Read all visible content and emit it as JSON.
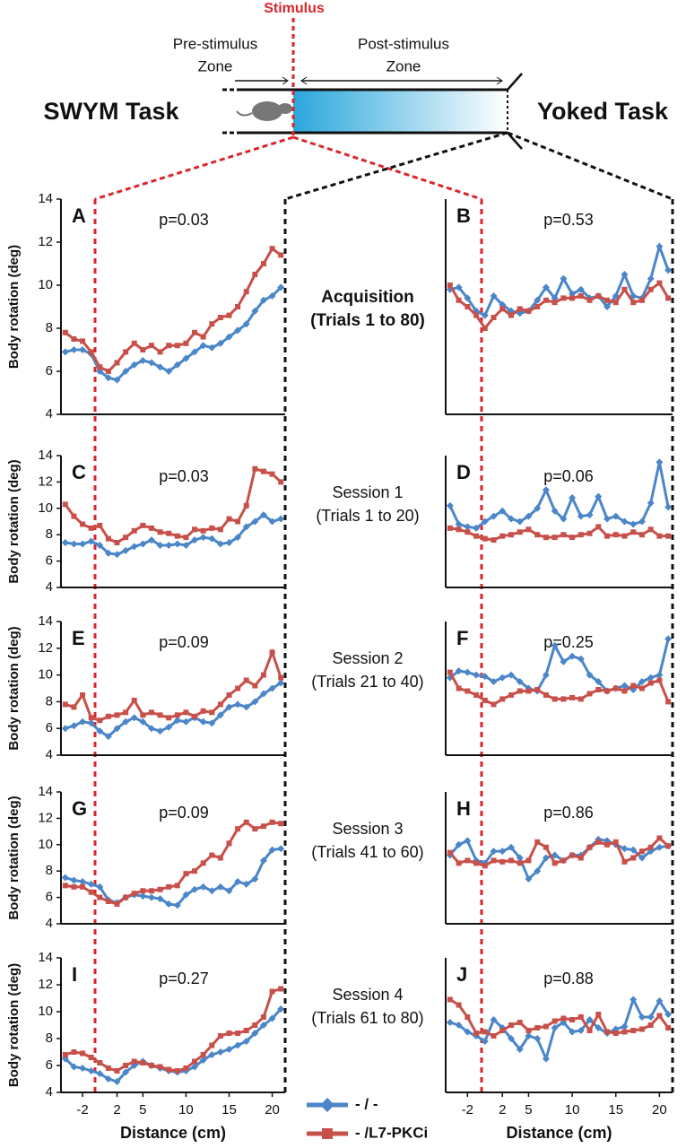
{
  "diagram": {
    "stimulus": "Stimulus",
    "pre_zone": [
      "Pre-stimulus",
      "Zone"
    ],
    "post_zone": [
      "Post-stimulus",
      "Zone"
    ],
    "left_task": "SWYM Task",
    "right_task": "Yoked Task"
  },
  "chart_data": [
    {
      "type": "line",
      "label": "A",
      "annotation": "p=0.03",
      "row_title": [
        "Acquisition",
        "(Trials 1 to 80)"
      ],
      "y_label": "Body rotation (deg)",
      "x": [
        -4,
        -3,
        -2,
        -1,
        0,
        1,
        2,
        3,
        4,
        5,
        6,
        7,
        8,
        9,
        10,
        11,
        12,
        13,
        14,
        15,
        16,
        17,
        18,
        19,
        20,
        21
      ],
      "xlim": [
        -4.5,
        21.5
      ],
      "ylim": [
        4,
        14
      ],
      "yticks": [
        4,
        6,
        8,
        10,
        12,
        14
      ],
      "series": [
        {
          "name": "- / -",
          "color": "#4a86c8",
          "marker": "diamond",
          "values": [
            6.9,
            7.0,
            7.0,
            6.8,
            6.0,
            5.7,
            5.6,
            6.0,
            6.3,
            6.5,
            6.4,
            6.2,
            6.0,
            6.3,
            6.6,
            6.9,
            7.2,
            7.1,
            7.3,
            7.6,
            7.9,
            8.2,
            8.8,
            9.3,
            9.5,
            9.9
          ]
        },
        {
          "name": "- /L7-PKCi",
          "color": "#c8504a",
          "marker": "square",
          "values": [
            7.8,
            7.5,
            7.4,
            6.9,
            6.2,
            6.0,
            6.4,
            6.9,
            7.3,
            7.0,
            7.2,
            6.9,
            7.2,
            7.2,
            7.3,
            7.8,
            7.6,
            8.2,
            8.5,
            8.6,
            9.0,
            9.7,
            10.5,
            11.0,
            11.7,
            11.4
          ]
        }
      ]
    },
    {
      "type": "line",
      "label": "B",
      "annotation": "p=0.53",
      "x": [
        -4,
        -3,
        -2,
        -1,
        0,
        1,
        2,
        3,
        4,
        5,
        6,
        7,
        8,
        9,
        10,
        11,
        12,
        13,
        14,
        15,
        16,
        17,
        18,
        19,
        20,
        21
      ],
      "xlim": [
        -4.5,
        21.5
      ],
      "ylim": [
        4,
        14
      ],
      "series": [
        {
          "name": "- / -",
          "color": "#4a86c8",
          "marker": "diamond",
          "values": [
            9.8,
            9.9,
            9.4,
            8.8,
            8.6,
            9.5,
            9.1,
            8.8,
            8.7,
            8.8,
            9.3,
            9.9,
            9.4,
            10.3,
            9.6,
            9.8,
            9.4,
            9.5,
            9.0,
            9.5,
            10.5,
            9.5,
            9.4,
            10.3,
            11.8,
            10.7
          ]
        },
        {
          "name": "- /L7-PKCi",
          "color": "#c8504a",
          "marker": "square",
          "values": [
            10.0,
            9.3,
            9.0,
            8.6,
            8.0,
            8.5,
            8.9,
            8.6,
            8.9,
            8.8,
            9.0,
            9.3,
            9.2,
            9.4,
            9.4,
            9.5,
            9.3,
            9.5,
            9.3,
            9.2,
            9.8,
            9.2,
            9.3,
            9.8,
            10.1,
            9.4
          ]
        }
      ]
    },
    {
      "type": "line",
      "label": "C",
      "annotation": "p=0.03",
      "row_title": [
        "Session 1",
        "(Trials 1 to 20)"
      ],
      "y_label": "Body rotation (deg)",
      "x": [
        -4,
        -3,
        -2,
        -1,
        0,
        1,
        2,
        3,
        4,
        5,
        6,
        7,
        8,
        9,
        10,
        11,
        12,
        13,
        14,
        15,
        16,
        17,
        18,
        19,
        20,
        21
      ],
      "xlim": [
        -4.5,
        21.5
      ],
      "ylim": [
        4,
        14
      ],
      "yticks": [
        4,
        6,
        8,
        10,
        12,
        14
      ],
      "series": [
        {
          "name": "- / -",
          "color": "#4a86c8",
          "marker": "diamond",
          "values": [
            7.4,
            7.3,
            7.3,
            7.5,
            7.2,
            6.6,
            6.5,
            6.8,
            7.1,
            7.3,
            7.6,
            7.2,
            7.2,
            7.3,
            7.2,
            7.6,
            7.8,
            7.7,
            7.3,
            7.4,
            7.8,
            8.6,
            9.0,
            9.5,
            9.0,
            9.2
          ]
        },
        {
          "name": "- /L7-PKCi",
          "color": "#c8504a",
          "marker": "square",
          "values": [
            10.3,
            9.4,
            8.8,
            8.5,
            8.7,
            7.7,
            7.4,
            7.8,
            8.3,
            8.7,
            8.5,
            8.2,
            8.1,
            7.9,
            7.8,
            8.4,
            8.3,
            8.5,
            8.4,
            9.2,
            9.0,
            10.2,
            13.0,
            12.8,
            12.6,
            12.0
          ]
        }
      ]
    },
    {
      "type": "line",
      "label": "D",
      "annotation": "p=0.06",
      "x": [
        -4,
        -3,
        -2,
        -1,
        0,
        1,
        2,
        3,
        4,
        5,
        6,
        7,
        8,
        9,
        10,
        11,
        12,
        13,
        14,
        15,
        16,
        17,
        18,
        19,
        20,
        21
      ],
      "xlim": [
        -4.5,
        21.5
      ],
      "ylim": [
        4,
        14
      ],
      "series": [
        {
          "name": "- / -",
          "color": "#4a86c8",
          "marker": "diamond",
          "values": [
            10.2,
            8.8,
            8.6,
            8.5,
            9.0,
            9.4,
            9.8,
            9.2,
            9.0,
            9.4,
            10.0,
            11.4,
            9.8,
            9.2,
            10.8,
            9.4,
            9.5,
            10.9,
            9.2,
            9.4,
            9.0,
            8.8,
            9.0,
            10.4,
            13.5,
            10.1
          ]
        },
        {
          "name": "- /L7-PKCi",
          "color": "#c8504a",
          "marker": "square",
          "values": [
            8.5,
            8.4,
            8.2,
            7.9,
            7.7,
            7.6,
            7.9,
            8.0,
            8.2,
            8.4,
            8.0,
            7.8,
            7.8,
            8.0,
            7.8,
            8.0,
            8.1,
            8.6,
            7.9,
            8.0,
            7.9,
            8.2,
            8.0,
            8.4,
            7.9,
            7.9
          ]
        }
      ]
    },
    {
      "type": "line",
      "label": "E",
      "annotation": "p=0.09",
      "row_title": [
        "Session 2",
        "(Trials 21 to 40)"
      ],
      "y_label": "Body rotation (deg)",
      "x": [
        -4,
        -3,
        -2,
        -1,
        0,
        1,
        2,
        3,
        4,
        5,
        6,
        7,
        8,
        9,
        10,
        11,
        12,
        13,
        14,
        15,
        16,
        17,
        18,
        19,
        20,
        21
      ],
      "xlim": [
        -4.5,
        21.5
      ],
      "ylim": [
        4,
        14
      ],
      "yticks": [
        4,
        6,
        8,
        10,
        12,
        14
      ],
      "series": [
        {
          "name": "- / -",
          "color": "#4a86c8",
          "marker": "diamond",
          "values": [
            6.0,
            6.2,
            6.5,
            6.4,
            5.8,
            5.4,
            6.0,
            6.5,
            6.8,
            6.5,
            6.0,
            5.8,
            6.1,
            6.6,
            6.5,
            6.8,
            6.5,
            6.4,
            7.0,
            7.6,
            7.8,
            7.6,
            8.0,
            8.6,
            9.0,
            9.4
          ]
        },
        {
          "name": "- /L7-PKCi",
          "color": "#c8504a",
          "marker": "square",
          "values": [
            7.8,
            7.6,
            8.5,
            6.8,
            6.6,
            6.9,
            7.0,
            7.2,
            8.1,
            7.0,
            7.2,
            7.0,
            6.8,
            7.0,
            7.2,
            6.9,
            7.3,
            7.2,
            7.8,
            8.5,
            9.0,
            9.6,
            9.2,
            10.0,
            11.7,
            9.8
          ]
        }
      ]
    },
    {
      "type": "line",
      "label": "F",
      "annotation": "p=0.25",
      "x": [
        -4,
        -3,
        -2,
        -1,
        0,
        1,
        2,
        3,
        4,
        5,
        6,
        7,
        8,
        9,
        10,
        11,
        12,
        13,
        14,
        15,
        16,
        17,
        18,
        19,
        20,
        21
      ],
      "xlim": [
        -4.5,
        21.5
      ],
      "ylim": [
        4,
        14
      ],
      "series": [
        {
          "name": "- / -",
          "color": "#4a86c8",
          "marker": "diamond",
          "values": [
            9.8,
            10.3,
            10.2,
            10.0,
            9.9,
            9.5,
            9.8,
            10.0,
            9.5,
            9.0,
            8.8,
            10.0,
            12.2,
            11.0,
            11.4,
            11.2,
            10.0,
            9.5,
            8.8,
            9.0,
            9.2,
            8.9,
            9.5,
            9.8,
            10.0,
            12.7
          ]
        },
        {
          "name": "- /L7-PKCi",
          "color": "#c8504a",
          "marker": "square",
          "values": [
            10.2,
            9.0,
            8.8,
            8.5,
            8.1,
            7.8,
            8.2,
            8.5,
            8.8,
            8.8,
            8.9,
            8.5,
            8.2,
            8.2,
            8.3,
            8.2,
            8.6,
            8.9,
            8.8,
            9.0,
            8.8,
            9.2,
            9.0,
            9.4,
            9.6,
            8.0
          ]
        }
      ]
    },
    {
      "type": "line",
      "label": "G",
      "annotation": "p=0.09",
      "row_title": [
        "Session 3",
        "(Trials 41 to 60)"
      ],
      "y_label": "Body rotation (deg)",
      "x": [
        -4,
        -3,
        -2,
        -1,
        0,
        1,
        2,
        3,
        4,
        5,
        6,
        7,
        8,
        9,
        10,
        11,
        12,
        13,
        14,
        15,
        16,
        17,
        18,
        19,
        20,
        21
      ],
      "xlim": [
        -4.5,
        21.5
      ],
      "ylim": [
        4,
        14
      ],
      "yticks": [
        4,
        6,
        8,
        10,
        12,
        14
      ],
      "series": [
        {
          "name": "- / -",
          "color": "#4a86c8",
          "marker": "diamond",
          "values": [
            7.5,
            7.3,
            7.2,
            7.0,
            6.8,
            5.8,
            5.6,
            6.0,
            6.2,
            6.1,
            6.0,
            5.9,
            5.5,
            5.4,
            6.2,
            6.6,
            6.8,
            6.5,
            6.8,
            6.5,
            7.2,
            7.0,
            7.4,
            8.8,
            9.6,
            9.7
          ]
        },
        {
          "name": "- /L7-PKCi",
          "color": "#c8504a",
          "marker": "square",
          "values": [
            6.9,
            6.8,
            6.8,
            6.4,
            6.0,
            5.7,
            5.5,
            6.0,
            6.3,
            6.5,
            6.5,
            6.6,
            6.8,
            6.9,
            7.8,
            8.0,
            8.6,
            9.2,
            9.0,
            10.1,
            11.2,
            11.7,
            11.2,
            11.4,
            11.7,
            11.6
          ]
        }
      ]
    },
    {
      "type": "line",
      "label": "H",
      "annotation": "p=0.86",
      "x": [
        -4,
        -3,
        -2,
        -1,
        0,
        1,
        2,
        3,
        4,
        5,
        6,
        7,
        8,
        9,
        10,
        11,
        12,
        13,
        14,
        15,
        16,
        17,
        18,
        19,
        20,
        21
      ],
      "xlim": [
        -4.5,
        21.5
      ],
      "ylim": [
        4,
        14
      ],
      "series": [
        {
          "name": "- / -",
          "color": "#4a86c8",
          "marker": "diamond",
          "values": [
            9.2,
            10.0,
            10.3,
            8.8,
            8.6,
            9.5,
            9.5,
            9.8,
            9.0,
            7.4,
            8.0,
            9.0,
            9.2,
            8.8,
            9.2,
            9.2,
            9.8,
            10.4,
            10.3,
            10.0,
            9.7,
            9.6,
            9.0,
            9.5,
            9.8,
            9.9
          ]
        },
        {
          "name": "- /L7-PKCi",
          "color": "#c8504a",
          "marker": "square",
          "values": [
            9.4,
            8.6,
            8.8,
            8.6,
            8.4,
            8.8,
            8.7,
            8.8,
            8.6,
            8.8,
            10.2,
            9.8,
            8.6,
            8.8,
            9.2,
            9.0,
            9.8,
            10.2,
            10.0,
            10.2,
            8.7,
            9.0,
            9.5,
            9.8,
            10.5,
            9.9
          ]
        }
      ]
    },
    {
      "type": "line",
      "label": "I",
      "annotation": "p=0.27",
      "row_title": [
        "Session 4",
        "(Trials 61 to 80)"
      ],
      "y_label": "Body rotation (deg)",
      "x_label": "Distance (cm)",
      "x": [
        -4,
        -3,
        -2,
        -1,
        0,
        1,
        2,
        3,
        4,
        5,
        6,
        7,
        8,
        9,
        10,
        11,
        12,
        13,
        14,
        15,
        16,
        17,
        18,
        19,
        20,
        21
      ],
      "xlim": [
        -4.5,
        21.5
      ],
      "xticks": [
        -2,
        2,
        5,
        10,
        15,
        20
      ],
      "ylim": [
        4,
        14
      ],
      "yticks": [
        4,
        6,
        8,
        10,
        12,
        14
      ],
      "series": [
        {
          "name": "- / -",
          "color": "#4a86c8",
          "marker": "diamond",
          "values": [
            6.5,
            5.9,
            5.8,
            5.6,
            5.4,
            5.0,
            4.8,
            5.5,
            6.0,
            6.3,
            6.0,
            5.8,
            5.6,
            5.5,
            5.6,
            5.9,
            6.4,
            6.8,
            7.0,
            7.2,
            7.5,
            7.8,
            8.4,
            9.0,
            9.5,
            10.2
          ]
        },
        {
          "name": "- /L7-PKCi",
          "color": "#c8504a",
          "marker": "square",
          "values": [
            6.8,
            7.0,
            6.9,
            6.6,
            6.2,
            5.8,
            5.6,
            6.0,
            6.3,
            6.2,
            6.0,
            5.9,
            5.7,
            5.6,
            5.8,
            6.3,
            6.8,
            7.5,
            8.2,
            8.4,
            8.4,
            8.6,
            9.0,
            9.6,
            11.5,
            11.7
          ]
        }
      ]
    },
    {
      "type": "line",
      "label": "J",
      "annotation": "p=0.88",
      "x_label": "Distance (cm)",
      "x": [
        -4,
        -3,
        -2,
        -1,
        0,
        1,
        2,
        3,
        4,
        5,
        6,
        7,
        8,
        9,
        10,
        11,
        12,
        13,
        14,
        15,
        16,
        17,
        18,
        19,
        20,
        21
      ],
      "xlim": [
        -4.5,
        21.5
      ],
      "xticks": [
        -2,
        2,
        5,
        10,
        15,
        20
      ],
      "ylim": [
        4,
        14
      ],
      "series": [
        {
          "name": "- / -",
          "color": "#4a86c8",
          "marker": "diamond",
          "values": [
            9.2,
            9.0,
            8.5,
            8.2,
            7.8,
            9.4,
            8.8,
            8.0,
            7.2,
            8.2,
            8.0,
            6.5,
            8.8,
            9.2,
            8.5,
            8.6,
            9.4,
            8.8,
            8.4,
            8.7,
            8.9,
            10.9,
            9.6,
            9.6,
            10.8,
            9.8
          ]
        },
        {
          "name": "- /L7-PKCi",
          "color": "#c8504a",
          "marker": "square",
          "values": [
            10.9,
            10.5,
            9.6,
            8.4,
            8.5,
            8.2,
            8.6,
            9.0,
            9.2,
            8.6,
            8.8,
            8.9,
            9.3,
            9.5,
            9.4,
            9.6,
            8.6,
            9.8,
            8.5,
            8.4,
            8.5,
            8.6,
            8.7,
            9.0,
            9.7,
            8.8
          ]
        }
      ]
    }
  ]
}
